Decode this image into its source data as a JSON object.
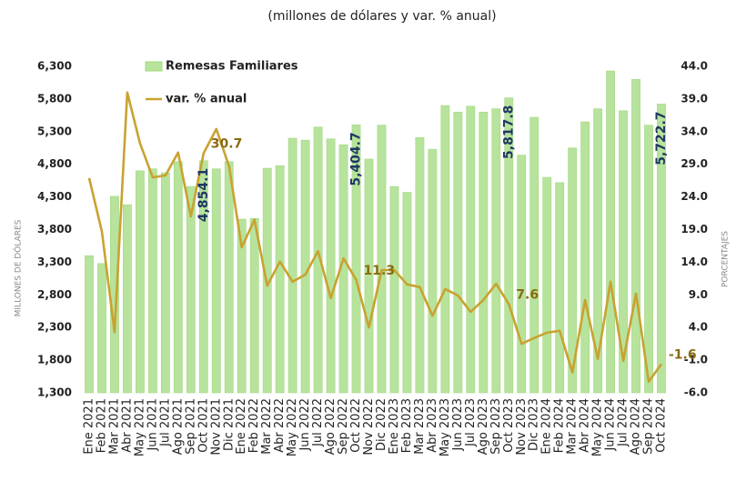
{
  "chart_data": {
    "type": "bar_line",
    "title": "(millones de dólares y var. % anual)",
    "ylabel": "MILLONES DE DÓLARES",
    "y2label": "PORCENTAJES",
    "categories": [
      "Ene 2021",
      "Feb 2021",
      "Mar 2021",
      "Abr 2021",
      "May 2021",
      "Jun 2021",
      "Jul 2021",
      "Ago 2021",
      "Sep 2021",
      "Oct 2021",
      "Nov 2021",
      "Dic 2021",
      "Ene 2022",
      "Feb 2022",
      "Mar 2022",
      "Abr 2022",
      "May 2022",
      "Jun 2022",
      "Jul 2022",
      "Ago 2022",
      "Sep 2022",
      "Oct 2022",
      "Nov 2022",
      "Dic 2022",
      "Ene 2023",
      "Feb 2023",
      "Mar 2023",
      "Abr 2023",
      "May 2023",
      "Jun 2023",
      "Jul 2023",
      "Ago 2023",
      "Sep 2023",
      "Oct 2023",
      "Nov 2023",
      "Dic 2023",
      "Ene 2024",
      "Feb 2024",
      "Mar 2024",
      "Abr 2024",
      "May 2024",
      "Jun 2024",
      "Jul 2024",
      "Ago 2024",
      "Sep 2024",
      "Oct 2024"
    ],
    "series": [
      {
        "name": "Remesas Familiares",
        "color": "#b7e39c",
        "values": [
          3400,
          3280,
          4310,
          4180,
          4700,
          4730,
          4670,
          4840,
          4460,
          4854.1,
          4730,
          4840,
          3960,
          3970,
          4740,
          4780,
          5200,
          5170,
          5370,
          5190,
          5100,
          5404.7,
          4880,
          5400,
          4460,
          4370,
          5210,
          5030,
          5700,
          5600,
          5690,
          5600,
          5650,
          5817.8,
          4940,
          5520,
          4600,
          4520,
          5050,
          5450,
          5650,
          6230,
          5620,
          6100,
          5400,
          5722.7
        ],
        "value_labels": [
          null,
          null,
          null,
          null,
          null,
          null,
          null,
          null,
          null,
          "4,854.1",
          null,
          null,
          null,
          null,
          null,
          null,
          null,
          null,
          null,
          null,
          null,
          "5,404.7",
          null,
          null,
          null,
          null,
          null,
          null,
          null,
          null,
          null,
          null,
          null,
          "5,817.8",
          null,
          null,
          null,
          null,
          null,
          null,
          null,
          null,
          null,
          null,
          null,
          "5,722.7"
        ]
      },
      {
        "name": "var. % anual",
        "color": "#c9a231",
        "axis": "y2",
        "values": [
          26.9,
          18.7,
          3.3,
          40.0,
          32.2,
          27.0,
          27.3,
          30.8,
          21.0,
          30.7,
          34.4,
          28.7,
          16.3,
          20.5,
          10.4,
          14.1,
          11.0,
          12.1,
          15.7,
          8.5,
          14.6,
          11.3,
          4.0,
          12.8,
          12.8,
          10.6,
          10.2,
          5.8,
          9.9,
          8.9,
          6.4,
          8.2,
          10.7,
          7.6,
          1.5,
          2.4,
          3.2,
          3.5,
          -2.9,
          8.2,
          -0.8,
          11.0,
          -1.1,
          9.2,
          -4.3,
          -1.6
        ],
        "value_labels": [
          null,
          null,
          null,
          null,
          null,
          null,
          null,
          null,
          null,
          "30.7",
          null,
          null,
          null,
          null,
          null,
          null,
          null,
          null,
          null,
          null,
          null,
          "11.3",
          null,
          null,
          null,
          null,
          null,
          null,
          null,
          null,
          null,
          null,
          null,
          "7.6",
          null,
          null,
          null,
          null,
          null,
          null,
          null,
          null,
          null,
          null,
          null,
          "-1.6"
        ]
      }
    ],
    "ylim": [
      1300,
      6300
    ],
    "yticks": [
      {
        "value": 1300,
        "label": "1,300"
      },
      {
        "value": 1800,
        "label": "1,800"
      },
      {
        "value": 2300,
        "label": "2,300"
      },
      {
        "value": 2800,
        "label": "2,800"
      },
      {
        "value": 3300,
        "label": "3,300"
      },
      {
        "value": 3800,
        "label": "3,800"
      },
      {
        "value": 4300,
        "label": "4,300"
      },
      {
        "value": 4800,
        "label": "4,800"
      },
      {
        "value": 5300,
        "label": "5,300"
      },
      {
        "value": 5800,
        "label": "5,800"
      },
      {
        "value": 6300,
        "label": "6,300"
      }
    ],
    "y2lim": [
      -6,
      44
    ],
    "y2ticks": [
      {
        "value": -6,
        "label": "-6.0"
      },
      {
        "value": -1,
        "label": "-1.0"
      },
      {
        "value": 4,
        "label": "4.0"
      },
      {
        "value": 9,
        "label": "9.0"
      },
      {
        "value": 14,
        "label": "14.0"
      },
      {
        "value": 19,
        "label": "19.0"
      },
      {
        "value": 24,
        "label": "24.0"
      },
      {
        "value": 29,
        "label": "29.0"
      },
      {
        "value": 34,
        "label": "34.0"
      },
      {
        "value": 39,
        "label": "39.0"
      },
      {
        "value": 44,
        "label": "44.0"
      }
    ],
    "legend": "upper left"
  }
}
